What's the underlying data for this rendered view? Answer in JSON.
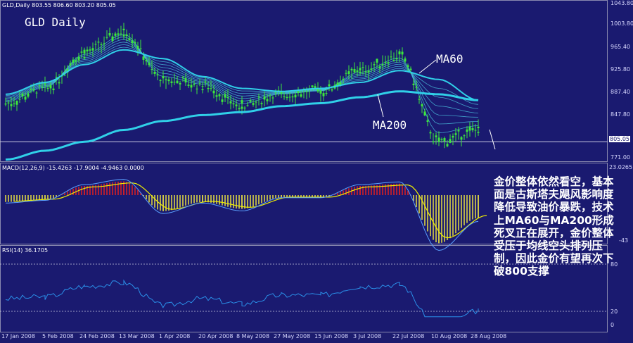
{
  "header": {
    "symbol_line": "GLD,Daily  803.55 806.60 803.20 805.05",
    "title": "GLD Daily"
  },
  "annotations": {
    "ma60": "MA60",
    "ma200": "MA200",
    "commentary": "金价整体依然看空，基本面是古斯塔夫飓风影响度降低导致油价暴跌，技术上MA60与MA200形成死叉正在展开，金价整体受压于均线空头排列压制，因此金价有望再次下破800支撑"
  },
  "price_axis": {
    "ticks": [
      "1043.80",
      "1003.80",
      "965.40",
      "925.80",
      "887.40",
      "847.80",
      "805.05",
      "771.00"
    ],
    "current_price": "805.05"
  },
  "macd_panel": {
    "label": "MACD(12,26,9) -15.4263 -17.9004 -4.9463 0.0000",
    "top_value": "23.0265",
    "right_value": "-43"
  },
  "rsi_panel": {
    "label": "RSI(14) 36.1705",
    "ticks": [
      "80",
      "20",
      "0"
    ]
  },
  "x_axis": {
    "ticks": [
      "17 Jan 2008",
      "5 Feb 2008",
      "24 Feb 2008",
      "13 Mar 2008",
      "1 Apr 2008",
      "20 Apr 2008",
      "8 May 2008",
      "27 May 2008",
      "15 Jun 2008",
      "3 Jul 2008",
      "22 Jul 2008",
      "10 Aug 2008",
      "28 Aug 2008"
    ]
  },
  "colors": {
    "background": "#1a1a70",
    "candle": "#3ce83c",
    "ma_long": "#30d0e8",
    "macd_pos": "#e02020",
    "macd_neg": "#e8e040",
    "signal": "#f0f000",
    "rsi": "#2a8fe8"
  },
  "chart_data": {
    "type": "line",
    "title": "GLD Daily",
    "x": [
      "17 Jan 2008",
      "5 Feb 2008",
      "24 Feb 2008",
      "13 Mar 2008",
      "1 Apr 2008",
      "20 Apr 2008",
      "8 May 2008",
      "27 May 2008",
      "15 Jun 2008",
      "3 Jul 2008",
      "22 Jul 2008",
      "10 Aug 2008",
      "28 Aug 2008"
    ],
    "ylim": [
      771,
      1043.8
    ],
    "series": [
      {
        "name": "GLD",
        "values": [
          870,
          895,
          955,
          990,
          910,
          900,
          865,
          885,
          890,
          925,
          950,
          805,
          825
        ]
      },
      {
        "name": "MA60",
        "values": [
          885,
          905,
          935,
          960,
          945,
          915,
          895,
          890,
          895,
          905,
          925,
          910,
          875
        ]
      },
      {
        "name": "MA200",
        "values": [
          775,
          790,
          805,
          825,
          840,
          850,
          855,
          865,
          870,
          880,
          890,
          885,
          875
        ]
      }
    ]
  }
}
